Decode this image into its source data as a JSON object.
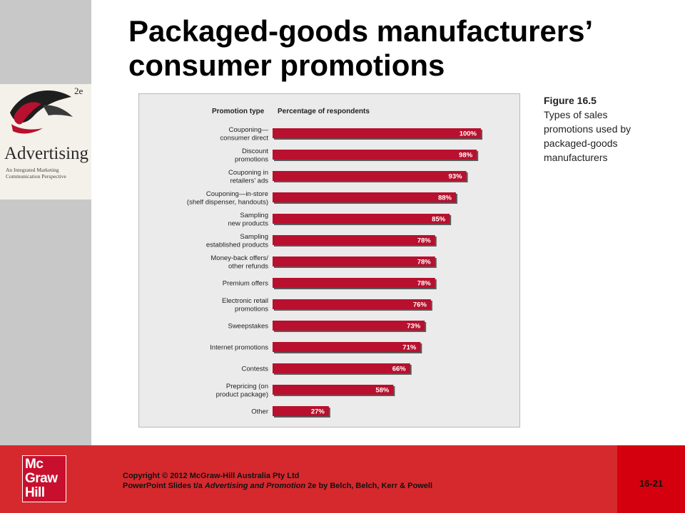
{
  "slide": {
    "title_line1": "Packaged-goods manufacturers’",
    "title_line2": "consumer promotions",
    "page_number": "16-21"
  },
  "book_cover": {
    "edition": "2e",
    "title": "Advertising",
    "subtitle": "An Integrated Marketing Communication Perspective"
  },
  "figure_caption": {
    "label": "Figure 16.5",
    "text": "Types of sales promotions used by packaged-goods manufacturers"
  },
  "logo": {
    "line1": "Mc",
    "line2": "Graw",
    "line3": "Hill"
  },
  "footer": {
    "copyright_prefix": "Copyright",
    "copyright_symbol": "©",
    "copyright_rest": "2012 McGraw-Hill Australia Pty Ltd",
    "line2_prefix": "PowerPoint Slides t/a",
    "line2_book": "Advertising and Promotion",
    "line2_suffix": "2e by Belch, Belch, Kerr & Powell"
  },
  "colors": {
    "bar": "#b8102e",
    "bar_shadow": "#5a5a5a",
    "footer": "#d6292e",
    "footer_right": "#d4000d"
  },
  "chart_data": {
    "type": "bar",
    "orientation": "horizontal",
    "column_headers": [
      "Promotion type",
      "Percentage of respondents"
    ],
    "categories": [
      [
        "Couponing—",
        "consumer direct"
      ],
      [
        "Discount",
        "promotions"
      ],
      [
        "Couponing in",
        "retailers’ ads"
      ],
      [
        "Couponing—in-store",
        "(shelf dispenser, handouts)"
      ],
      [
        "Sampling",
        "new products"
      ],
      [
        "Sampling",
        "established products"
      ],
      [
        "Money-back offers/",
        "other refunds"
      ],
      [
        "Premium offers"
      ],
      [
        "Electronic retail",
        "promotions"
      ],
      [
        "Sweepstakes"
      ],
      [
        "Internet promotions"
      ],
      [
        "Contests"
      ],
      [
        "Prepricing (on",
        "product package)"
      ],
      [
        "Other"
      ]
    ],
    "values": [
      100,
      98,
      93,
      88,
      85,
      78,
      78,
      78,
      76,
      73,
      71,
      66,
      58,
      27
    ],
    "value_labels": [
      "100%",
      "98%",
      "93%",
      "88%",
      "85%",
      "78%",
      "78%",
      "78%",
      "76%",
      "73%",
      "71%",
      "66%",
      "58%",
      "27%"
    ],
    "xlim": [
      0,
      100
    ],
    "grid": false,
    "legend": "none"
  }
}
